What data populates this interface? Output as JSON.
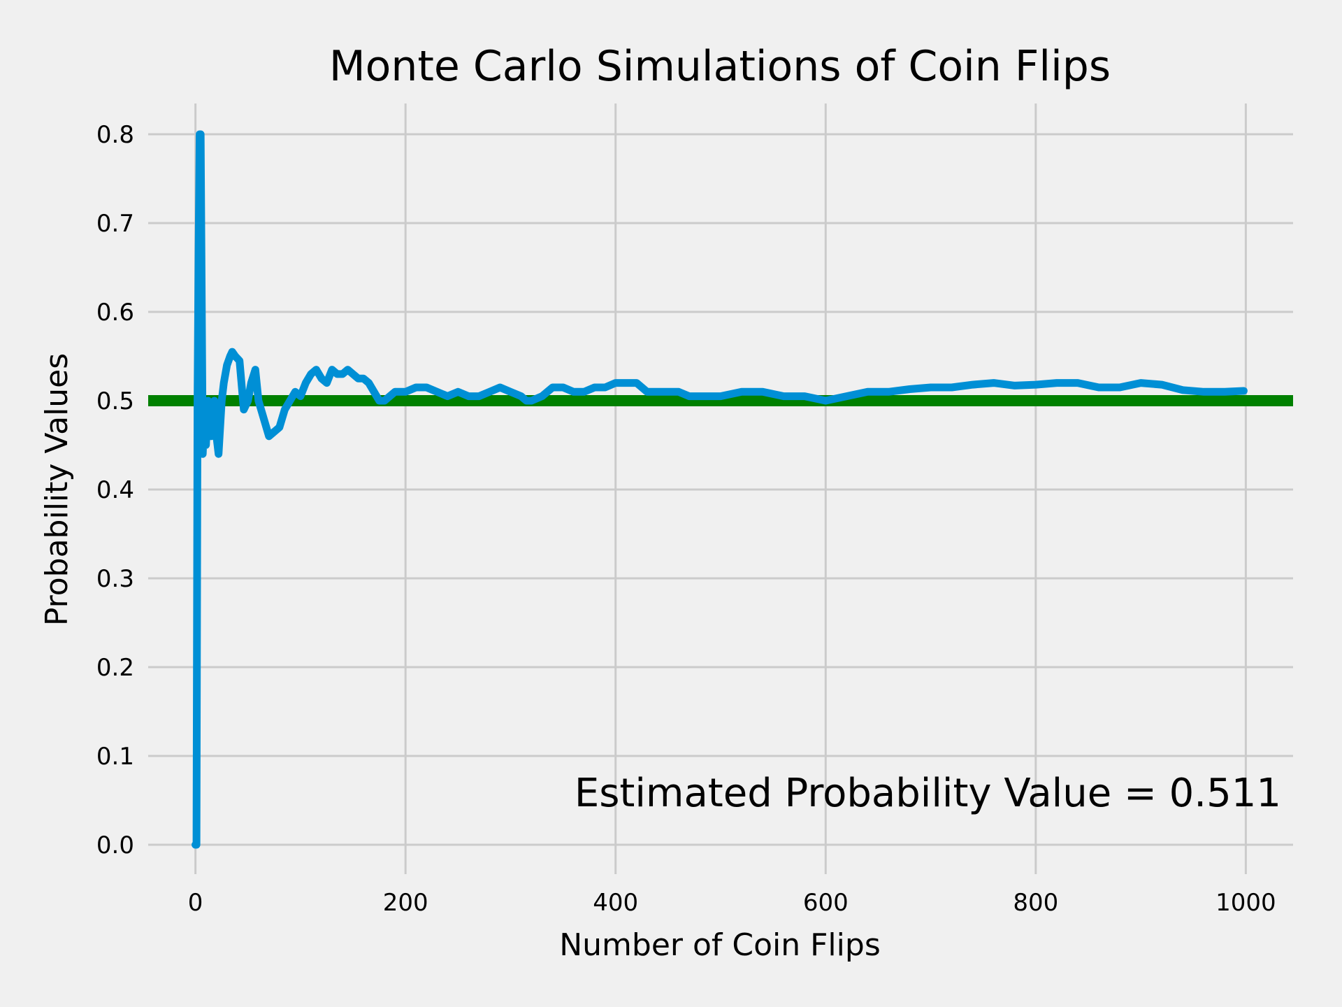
{
  "chart_data": {
    "type": "line",
    "title": "Monte Carlo Simulations of Coin Flips",
    "xlabel": "Number of Coin Flips",
    "ylabel": "Probability Values",
    "xlim": [
      -45,
      1045
    ],
    "ylim": [
      0,
      0.8
    ],
    "xticks": [
      "0",
      "200",
      "400",
      "600",
      "800",
      "1000"
    ],
    "yticks": [
      "0.0",
      "0.1",
      "0.2",
      "0.3",
      "0.4",
      "0.5",
      "0.6",
      "0.7",
      "0.8"
    ],
    "grid": true,
    "annotation": "Estimated Probability Value = 0.511",
    "colors": {
      "background": "#f0f0f0",
      "series": "#008fd5",
      "reference": "#008000",
      "grid": "#cbcbcb"
    },
    "series": [
      {
        "color": "#008fd5",
        "x": [
          0,
          1,
          2,
          3,
          4,
          5,
          7,
          9,
          10,
          12,
          15,
          18,
          20,
          22,
          25,
          27,
          30,
          33,
          35,
          38,
          42,
          46,
          50,
          53,
          57,
          60,
          65,
          70,
          75,
          80,
          85,
          90,
          95,
          100,
          105,
          110,
          115,
          120,
          125,
          130,
          135,
          140,
          145,
          150,
          155,
          160,
          165,
          170,
          175,
          180,
          190,
          200,
          210,
          220,
          230,
          240,
          250,
          260,
          270,
          280,
          290,
          300,
          310,
          315,
          320,
          330,
          340,
          350,
          360,
          370,
          380,
          390,
          400,
          410,
          420,
          430,
          440,
          450,
          460,
          470,
          480,
          490,
          500,
          520,
          540,
          560,
          580,
          600,
          620,
          640,
          660,
          680,
          700,
          720,
          740,
          760,
          780,
          800,
          820,
          840,
          860,
          880,
          900,
          920,
          940,
          960,
          980,
          998
        ],
        "y": [
          0.0,
          0.0,
          0.5,
          0.67,
          0.8,
          0.8,
          0.44,
          0.5,
          0.45,
          0.5,
          0.46,
          0.5,
          0.46,
          0.44,
          0.5,
          0.52,
          0.54,
          0.55,
          0.555,
          0.55,
          0.545,
          0.49,
          0.5,
          0.52,
          0.535,
          0.5,
          0.48,
          0.46,
          0.465,
          0.47,
          0.49,
          0.5,
          0.51,
          0.505,
          0.52,
          0.53,
          0.535,
          0.525,
          0.52,
          0.535,
          0.53,
          0.53,
          0.535,
          0.53,
          0.525,
          0.525,
          0.52,
          0.51,
          0.5,
          0.5,
          0.51,
          0.51,
          0.515,
          0.515,
          0.51,
          0.505,
          0.51,
          0.505,
          0.505,
          0.51,
          0.515,
          0.51,
          0.505,
          0.5,
          0.5,
          0.505,
          0.515,
          0.515,
          0.51,
          0.51,
          0.515,
          0.515,
          0.52,
          0.52,
          0.52,
          0.51,
          0.51,
          0.51,
          0.51,
          0.505,
          0.505,
          0.505,
          0.505,
          0.51,
          0.51,
          0.505,
          0.505,
          0.5,
          0.505,
          0.51,
          0.51,
          0.513,
          0.515,
          0.515,
          0.518,
          0.52,
          0.517,
          0.518,
          0.52,
          0.52,
          0.515,
          0.515,
          0.52,
          0.518,
          0.512,
          0.51,
          0.51,
          0.511
        ]
      },
      {
        "color": "#008000",
        "x": [
          -45,
          1045
        ],
        "y": [
          0.5,
          0.5
        ]
      }
    ]
  }
}
